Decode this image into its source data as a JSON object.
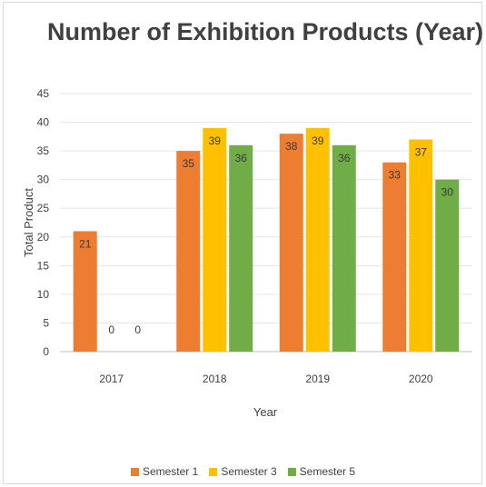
{
  "chart_data": {
    "type": "bar",
    "title": "Number of Exhibition Products (Year)",
    "xlabel": "Year",
    "ylabel": "Total Product",
    "categories": [
      "2017",
      "2018",
      "2019",
      "2020"
    ],
    "series": [
      {
        "name": "Semester 1",
        "color": "#ed7d31",
        "values": [
          21,
          35,
          38,
          33
        ]
      },
      {
        "name": "Semester 3",
        "color": "#ffc000",
        "values": [
          0,
          39,
          39,
          37
        ]
      },
      {
        "name": "Semester 5",
        "color": "#70ad47",
        "values": [
          0,
          36,
          36,
          30
        ]
      }
    ],
    "ylim": [
      0,
      45
    ],
    "yticks": [
      0,
      5,
      10,
      15,
      20,
      25,
      30,
      35,
      40,
      45
    ],
    "grid": true,
    "legend_position": "bottom"
  }
}
